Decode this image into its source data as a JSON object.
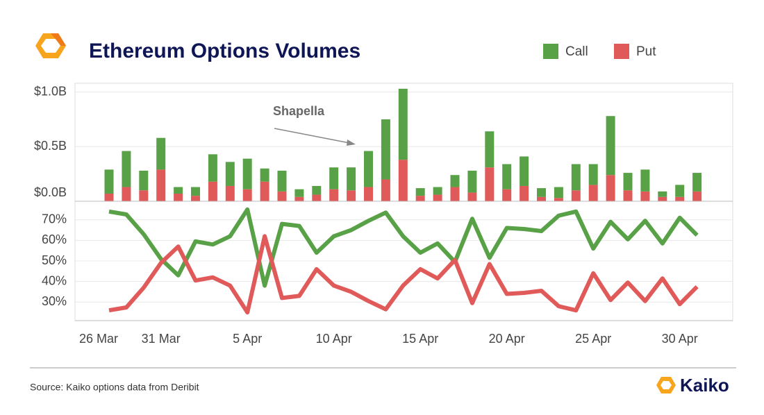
{
  "chart_data": [
    {
      "type": "stacked_bar",
      "title": "Ethereum Options Volumes",
      "annotation": "Shapella",
      "legend": "top-right",
      "categories": [
        "26 Mar",
        null,
        null,
        "31 Mar",
        null,
        null,
        null,
        null,
        "5 Apr",
        null,
        null,
        null,
        null,
        "10 Apr",
        null,
        null,
        null,
        null,
        "15 Apr",
        null,
        null,
        null,
        null,
        "20 Apr",
        null,
        null,
        null,
        null,
        "25 Apr",
        null,
        null,
        null,
        null,
        "30 Apr",
        null
      ],
      "ylim": [
        0,
        1.08
      ],
      "yticks": [
        {
          "value": 0,
          "label": "$0.0B"
        },
        {
          "value": 0.5,
          "label": "$0.5B"
        },
        {
          "value": 1.0,
          "label": "$1.0B"
        }
      ],
      "grid": true,
      "series": [
        {
          "name": "Call",
          "color": "#58a147",
          "values": [
            0.22,
            0.33,
            0.18,
            0.29,
            0.06,
            0.08,
            0.25,
            0.22,
            0.28,
            0.12,
            0.19,
            0.07,
            0.08,
            0.2,
            0.21,
            0.33,
            0.55,
            0.65,
            0.07,
            0.07,
            0.11,
            0.2,
            0.33,
            0.23,
            0.27,
            0.08,
            0.1,
            0.24,
            0.19,
            0.54,
            0.16,
            0.2,
            0.05,
            0.11,
            0.17
          ]
        },
        {
          "name": "Put",
          "color": "#e05a5a",
          "values": [
            0.07,
            0.13,
            0.1,
            0.29,
            0.07,
            0.05,
            0.18,
            0.14,
            0.11,
            0.18,
            0.09,
            0.04,
            0.06,
            0.11,
            0.1,
            0.13,
            0.2,
            0.38,
            0.05,
            0.06,
            0.13,
            0.08,
            0.31,
            0.11,
            0.14,
            0.04,
            0.03,
            0.1,
            0.15,
            0.24,
            0.1,
            0.09,
            0.04,
            0.04,
            0.09
          ]
        }
      ]
    },
    {
      "type": "line",
      "ylim": [
        21,
        79
      ],
      "yticks": [
        {
          "value": 30,
          "label": "30%"
        },
        {
          "value": 40,
          "label": "40%"
        },
        {
          "value": 50,
          "label": "50%"
        },
        {
          "value": 60,
          "label": "60%"
        },
        {
          "value": 70,
          "label": "70%"
        }
      ],
      "grid": true,
      "series": [
        {
          "color": "#58a147",
          "values": [
            74,
            72.6,
            63,
            51,
            43,
            59.5,
            58,
            62,
            75,
            38,
            68,
            67,
            54,
            62,
            65,
            69.5,
            73.5,
            62,
            54,
            58.5,
            49.5,
            70.5,
            51.5,
            66,
            65.5,
            64.5,
            72,
            74,
            56,
            69,
            60.5,
            69.5,
            58.5,
            71,
            62.5
          ]
        },
        {
          "color": "#e05a5a",
          "values": [
            26,
            27.4,
            37,
            49,
            57,
            40.5,
            42,
            38,
            25,
            62,
            32,
            33,
            46,
            38,
            35,
            30.5,
            26.5,
            38,
            46,
            41.5,
            50.5,
            29.5,
            48.5,
            34,
            34.5,
            35.5,
            28,
            26,
            44,
            31,
            39.5,
            30.5,
            41.5,
            29,
            37.5
          ]
        }
      ]
    }
  ],
  "footer": {
    "source": "Source: Kaiko options data from Deribit",
    "brand": "Kaiko"
  }
}
